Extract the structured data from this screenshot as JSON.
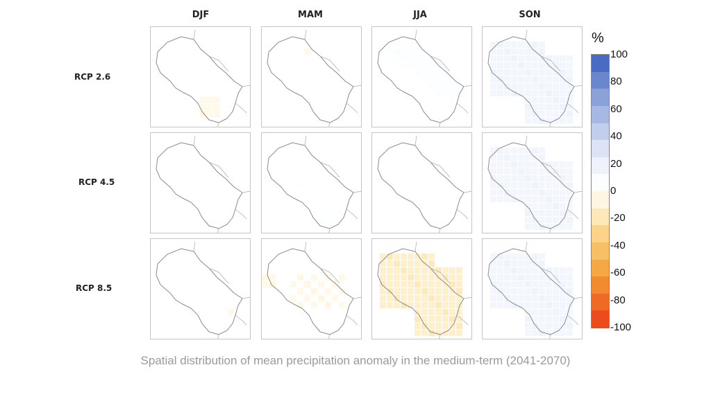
{
  "chart_data": {
    "type": "heatmap",
    "title": "",
    "caption": "Spatial distribution of mean precipitation anomaly in the medium-term (2041-2070)",
    "columns": [
      "DJF",
      "MAM",
      "JJA",
      "SON"
    ],
    "rows": [
      "RCP 2.6",
      "RCP 4.5",
      "RCP 8.5"
    ],
    "colorbar": {
      "unit": "%",
      "range": [
        -100,
        100
      ],
      "ticks": [
        "100",
        "80",
        "60",
        "40",
        "20",
        "0",
        "-20",
        "-40",
        "-60",
        "-80",
        "-100"
      ],
      "colors": [
        "#4a6bc2",
        "#6a86cc",
        "#8ba2d8",
        "#a7b8e2",
        "#c2cfec",
        "#dbe3f5",
        "#eef2fb",
        "#fbfdff",
        "#fff6e2",
        "#fde8b8",
        "#fbd48a",
        "#f8c064",
        "#f5a843",
        "#f28b30",
        "#ef6b25",
        "#ec4b1c"
      ]
    },
    "panels": [
      {
        "row": "RCP 2.6",
        "col": "DJF",
        "region": "south",
        "mean_anomaly": -10
      },
      {
        "row": "RCP 2.6",
        "col": "MAM",
        "region": "north-point",
        "mean_anomaly": -10
      },
      {
        "row": "RCP 2.6",
        "col": "JJA",
        "region": "diagonal-band",
        "mean_anomaly": 10
      },
      {
        "row": "RCP 2.6",
        "col": "SON",
        "region": "widespread",
        "mean_anomaly": 18
      },
      {
        "row": "RCP 4.5",
        "col": "DJF",
        "region": "none",
        "mean_anomaly": 0
      },
      {
        "row": "RCP 4.5",
        "col": "MAM",
        "region": "scattered-south",
        "mean_anomaly": 10
      },
      {
        "row": "RCP 4.5",
        "col": "JJA",
        "region": "north-point",
        "mean_anomaly": 10
      },
      {
        "row": "RCP 4.5",
        "col": "SON",
        "region": "widespread",
        "mean_anomaly": 18
      },
      {
        "row": "RCP 8.5",
        "col": "DJF",
        "region": "east-point",
        "mean_anomaly": -10
      },
      {
        "row": "RCP 8.5",
        "col": "MAM",
        "region": "scattered",
        "mean_anomaly": -12
      },
      {
        "row": "RCP 8.5",
        "col": "JJA",
        "region": "widespread",
        "mean_anomaly": -18
      },
      {
        "row": "RCP 8.5",
        "col": "SON",
        "region": "widespread",
        "mean_anomaly": 18
      }
    ]
  }
}
